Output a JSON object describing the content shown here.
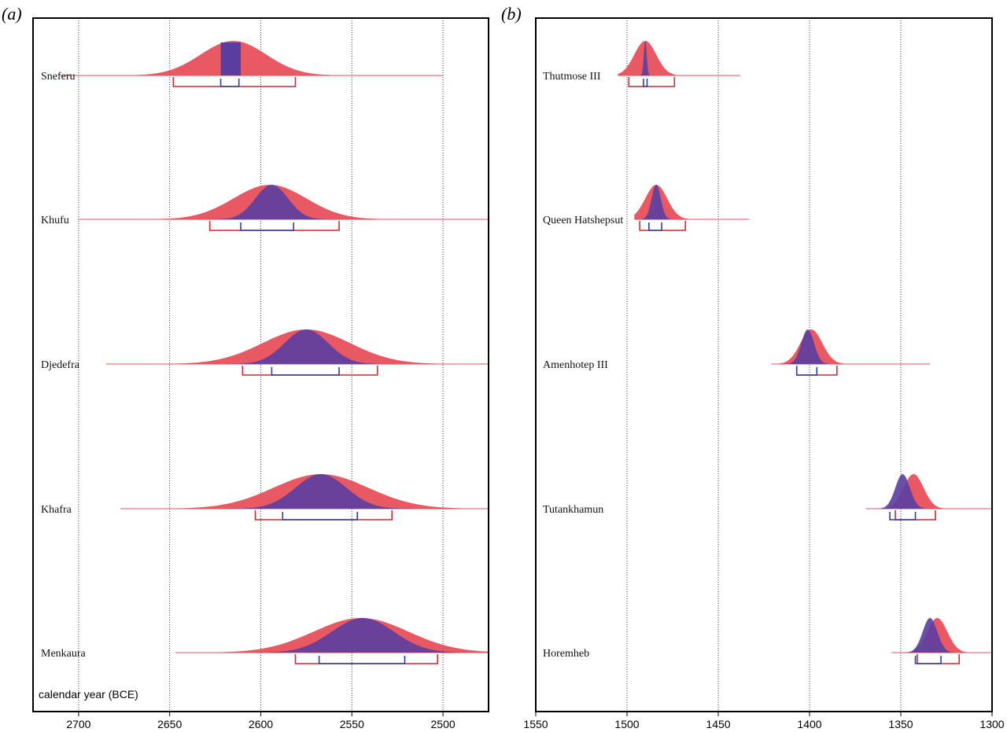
{
  "colors": {
    "unmodelled": "#e8505c",
    "modelled": "#5b3da0",
    "modelled_range": "#2d3fa3",
    "unmodelled_range": "#d8252f"
  },
  "panels": {
    "a": {
      "label": "(a)"
    },
    "b": {
      "label": "(b)"
    }
  },
  "chart_data": [
    {
      "type": "area",
      "panel": "(a)",
      "xlabel": "calendar year (BCE)",
      "xlim": [
        2725,
        2475
      ],
      "xticks": [
        2700,
        2650,
        2600,
        2550,
        2500
      ],
      "gridlines": [
        2700,
        2650,
        2600,
        2550,
        2500
      ],
      "rows": [
        {
          "label": "Sneferu",
          "line": [
            2710,
            2500
          ],
          "unmodelled": {
            "mode": 2615,
            "sd": 18,
            "range": [
              2648,
              2581
            ]
          },
          "modelled": {
            "mode": 2617,
            "sd": 5,
            "flat": [
              2622,
              2611
            ],
            "range": [
              2622,
              2612
            ]
          }
        },
        {
          "label": "Khufu",
          "line": [
            2700,
            2475
          ],
          "unmodelled": {
            "mode": 2595,
            "sd": 20,
            "range": [
              2628,
              2557
            ]
          },
          "modelled": {
            "mode": 2594,
            "sd": 9,
            "range": [
              2611,
              2582
            ]
          }
        },
        {
          "label": "Djedefra",
          "line": [
            2685,
            2475
          ],
          "unmodelled": {
            "mode": 2575,
            "sd": 24,
            "range": [
              2610,
              2536
            ]
          },
          "modelled": {
            "mode": 2575,
            "sd": 12,
            "range": [
              2594,
              2557
            ]
          }
        },
        {
          "label": "Khafra",
          "line": [
            2677,
            2475
          ],
          "unmodelled": {
            "mode": 2567,
            "sd": 26,
            "range": [
              2603,
              2528
            ]
          },
          "modelled": {
            "mode": 2567,
            "sd": 14,
            "range": [
              2588,
              2547
            ]
          }
        },
        {
          "label": "Menkaura",
          "line": [
            2647,
            2475
          ],
          "unmodelled": {
            "mode": 2545,
            "sd": 26,
            "range": [
              2581,
              2503
            ]
          },
          "modelled": {
            "mode": 2544,
            "sd": 17,
            "range": [
              2568,
              2521
            ]
          }
        }
      ]
    },
    {
      "type": "area",
      "panel": "(b)",
      "xlim": [
        1550,
        1300
      ],
      "xticks": [
        1550,
        1500,
        1450,
        1400,
        1350,
        1300
      ],
      "gridlines": [
        1500,
        1450,
        1400,
        1350
      ],
      "rows": [
        {
          "label": "Thutmose III",
          "line": [
            1505,
            1438
          ],
          "unmodelled": {
            "mode": 1490,
            "sd": 6,
            "range": [
              1499,
              1474
            ]
          },
          "modelled": {
            "mode": 1490,
            "sd": 0.8,
            "range": [
              1491,
              1489
            ]
          }
        },
        {
          "label": "Queen Hatshepsut",
          "line": [
            1496,
            1433
          ],
          "unmodelled": {
            "mode": 1484,
            "sd": 6,
            "range": [
              1493,
              1468
            ]
          },
          "modelled": {
            "mode": 1484,
            "sd": 2.5,
            "range": [
              1488,
              1481
            ]
          }
        },
        {
          "label": "Amenhotep III",
          "line": [
            1421,
            1334
          ],
          "unmodelled": {
            "mode": 1399,
            "sd": 6,
            "range": [
              1407,
              1385
            ]
          },
          "modelled": {
            "mode": 1401,
            "sd": 3.5,
            "range": [
              1407,
              1396
            ]
          }
        },
        {
          "label": "Tutankhamun",
          "line": [
            1369,
            1300
          ],
          "unmodelled": {
            "mode": 1343,
            "sd": 5.5,
            "range": [
              1353,
              1331
            ]
          },
          "modelled": {
            "mode": 1349,
            "sd": 4,
            "range": [
              1356,
              1342
            ]
          }
        },
        {
          "label": "Horemheb",
          "line": [
            1355,
            1300
          ],
          "unmodelled": {
            "mode": 1330,
            "sd": 5.5,
            "range": [
              1341,
              1318
            ]
          },
          "modelled": {
            "mode": 1334,
            "sd": 4,
            "range": [
              1342,
              1328
            ]
          }
        }
      ]
    }
  ]
}
